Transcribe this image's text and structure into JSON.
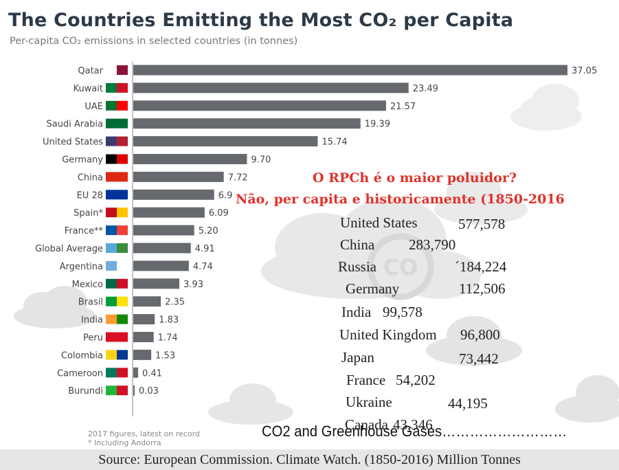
{
  "title": "The Countries Emitting the Most CO₂ per Capita",
  "subtitle": "Per-capita CO₂ emissions in selected countries (in tonnes)",
  "chart_data": {
    "type": "bar",
    "orientation": "horizontal",
    "categories": [
      "Qatar",
      "Kuwait",
      "UAE",
      "Saudi Arabia",
      "United States",
      "Germany",
      "China",
      "EU 28",
      "Spain*",
      "France**",
      "Global Average",
      "Argentina",
      "Mexico",
      "Brasil",
      "India",
      "Peru",
      "Colombia",
      "Cameroon",
      "Burundi"
    ],
    "values": [
      37.05,
      23.49,
      21.57,
      19.39,
      15.74,
      9.7,
      7.72,
      6.9,
      6.09,
      5.2,
      4.91,
      4.74,
      3.93,
      2.35,
      1.83,
      1.74,
      1.53,
      0.41,
      0.03
    ],
    "value_labels": [
      "37.05",
      "23.49",
      "21.57",
      "19.39",
      "15.74",
      "9.70",
      "7.72",
      "6.9",
      "6.09",
      "5.20",
      "4.91",
      "4.74",
      "3.93",
      "2.35",
      "1.83",
      "1.74",
      "1.53",
      "0.41",
      "0.03"
    ],
    "xlim": [
      0,
      37.05
    ],
    "bar_color": "#666a6e",
    "grid": false
  },
  "footnotes": [
    "2017 figures, latest on record",
    "*   Including Andorra"
  ],
  "overlay": {
    "question": "O RPCh é o maior poluidor?",
    "answer": "Não, per capita e historicamente (1850-2016",
    "historical": [
      {
        "country": "United States",
        "value": "577,578"
      },
      {
        "country": "China",
        "value": "283,790"
      },
      {
        "country": "Russia",
        "value": "´184,224"
      },
      {
        "country": "Germany",
        "value": "112,506"
      },
      {
        "country": "India",
        "value": "99,578"
      },
      {
        "country": "United Kingdom",
        "value": "96,800"
      },
      {
        "country": "Japan",
        "value": "73,442"
      },
      {
        "country": "France",
        "value": "54,202"
      },
      {
        "country": "Ukraine",
        "value": "44,195"
      },
      {
        "country": "Canada",
        "value": "43,346"
      }
    ],
    "co2_line": "CO2 and Greenhouse Gases………………………",
    "source": "Source: European Commission. Climate Watch. (1850-2016) Million Tonnes"
  },
  "colors": {
    "title": "#2d3a45",
    "bar": "#666a6e",
    "overlay_red": "#e0322a",
    "cloud": "#ececec"
  }
}
